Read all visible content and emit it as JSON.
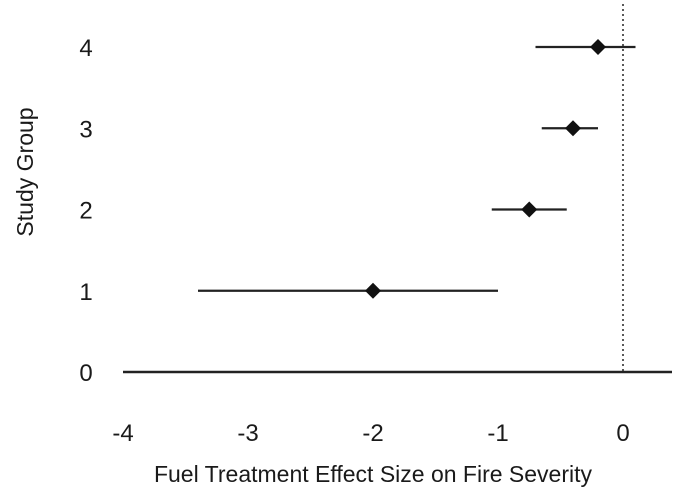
{
  "chart_data": {
    "type": "scatter",
    "subtype": "forest-plot",
    "title": "",
    "xlabel": "Fuel Treatment Effect Size on Fire Severity",
    "ylabel": "Study Group",
    "xlim": [
      -4,
      0.45
    ],
    "ylim": [
      0,
      4.3
    ],
    "x_ticks": [
      "-4",
      "-3",
      "-2",
      "-1",
      "0"
    ],
    "y_ticks": [
      "0",
      "1",
      "2",
      "3",
      "4"
    ],
    "reference_line_x": 0,
    "grid": false,
    "legend": "none",
    "points": [
      {
        "y": 1,
        "x": -2.0,
        "ci_low": -3.4,
        "ci_high": -1.0
      },
      {
        "y": 2,
        "x": -0.75,
        "ci_low": -1.05,
        "ci_high": -0.45
      },
      {
        "y": 3,
        "x": -0.4,
        "ci_low": -0.65,
        "ci_high": -0.2
      },
      {
        "y": 4,
        "x": -0.2,
        "ci_low": -0.7,
        "ci_high": 0.1
      }
    ],
    "colors": {
      "marker": "#111111",
      "line": "#222222"
    }
  }
}
